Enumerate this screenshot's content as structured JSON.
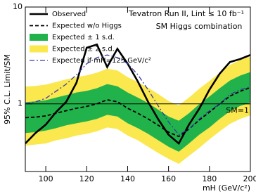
{
  "chart_data": {
    "type": "line",
    "y_label": "95% C.L. Limit/SM",
    "x_label": "mH (GeV/c²)",
    "annotations": [
      "Tevatron Run II, Lint ≤ 10 fb⁻¹",
      "SM Higgs combination"
    ],
    "reference_line": {
      "value": 1,
      "label": "SM=1"
    },
    "x": [
      90,
      95,
      100,
      105,
      110,
      115,
      120,
      125,
      130,
      135,
      140,
      145,
      150,
      155,
      160,
      165,
      170,
      175,
      180,
      185,
      190,
      195,
      200
    ],
    "xlim": [
      90,
      200
    ],
    "xticks": [
      100,
      120,
      140,
      160,
      180,
      200
    ],
    "ylim": [
      0.2,
      10
    ],
    "yticks": [
      1,
      10
    ],
    "log_y": true,
    "series": [
      {
        "name": "Observed",
        "style": "solid",
        "color": "#000000",
        "values": [
          0.39,
          0.5,
          0.61,
          0.82,
          1.05,
          1.65,
          3.8,
          4.1,
          2.4,
          3.7,
          2.6,
          1.7,
          1.05,
          0.69,
          0.48,
          0.39,
          0.61,
          0.89,
          1.4,
          2.05,
          2.7,
          2.9,
          3.2
        ]
      },
      {
        "name": "Expected w/o Higgs",
        "style": "dashed",
        "color": "#000000",
        "values": [
          0.72,
          0.73,
          0.75,
          0.8,
          0.85,
          0.9,
          0.94,
          1.0,
          1.1,
          1.05,
          0.9,
          0.8,
          0.7,
          0.6,
          0.51,
          0.46,
          0.55,
          0.68,
          0.82,
          1.0,
          1.2,
          1.35,
          1.47
        ]
      },
      {
        "name": "Expected ± 1 s.d.",
        "style": "band",
        "color": "#22b24c",
        "low": [
          0.5,
          0.51,
          0.53,
          0.56,
          0.6,
          0.63,
          0.66,
          0.7,
          0.77,
          0.74,
          0.63,
          0.56,
          0.49,
          0.42,
          0.36,
          0.32,
          0.39,
          0.48,
          0.57,
          0.7,
          0.84,
          0.95,
          1.03
        ],
        "high": [
          1.04,
          1.06,
          1.09,
          1.16,
          1.23,
          1.31,
          1.36,
          1.45,
          1.6,
          1.52,
          1.31,
          1.16,
          1.02,
          0.87,
          0.74,
          0.67,
          0.8,
          0.99,
          1.19,
          1.45,
          1.74,
          1.96,
          2.13
        ]
      },
      {
        "name": "Expected ± 2 s.d.",
        "style": "band",
        "color": "#fbe84e",
        "low": [
          0.37,
          0.38,
          0.39,
          0.42,
          0.44,
          0.47,
          0.49,
          0.52,
          0.57,
          0.55,
          0.47,
          0.42,
          0.36,
          0.31,
          0.27,
          0.24,
          0.29,
          0.35,
          0.43,
          0.52,
          0.62,
          0.7,
          0.76
        ],
        "high": [
          1.51,
          1.53,
          1.58,
          1.68,
          1.79,
          1.89,
          1.97,
          2.1,
          2.31,
          2.21,
          1.89,
          1.68,
          1.47,
          1.26,
          1.07,
          0.97,
          1.16,
          1.43,
          1.72,
          2.1,
          2.52,
          2.84,
          3.09
        ]
      },
      {
        "name": "Expected if mH=125 GeV/c²",
        "style": "dashdot",
        "color": "#3a3aa8",
        "values": [
          1.0,
          1.05,
          1.14,
          1.35,
          1.6,
          2.0,
          2.6,
          3.0,
          3.2,
          3.0,
          2.6,
          2.0,
          1.4,
          0.95,
          0.65,
          0.48,
          0.55,
          0.7,
          0.85,
          1.0,
          1.25,
          1.4,
          1.5
        ]
      }
    ]
  }
}
